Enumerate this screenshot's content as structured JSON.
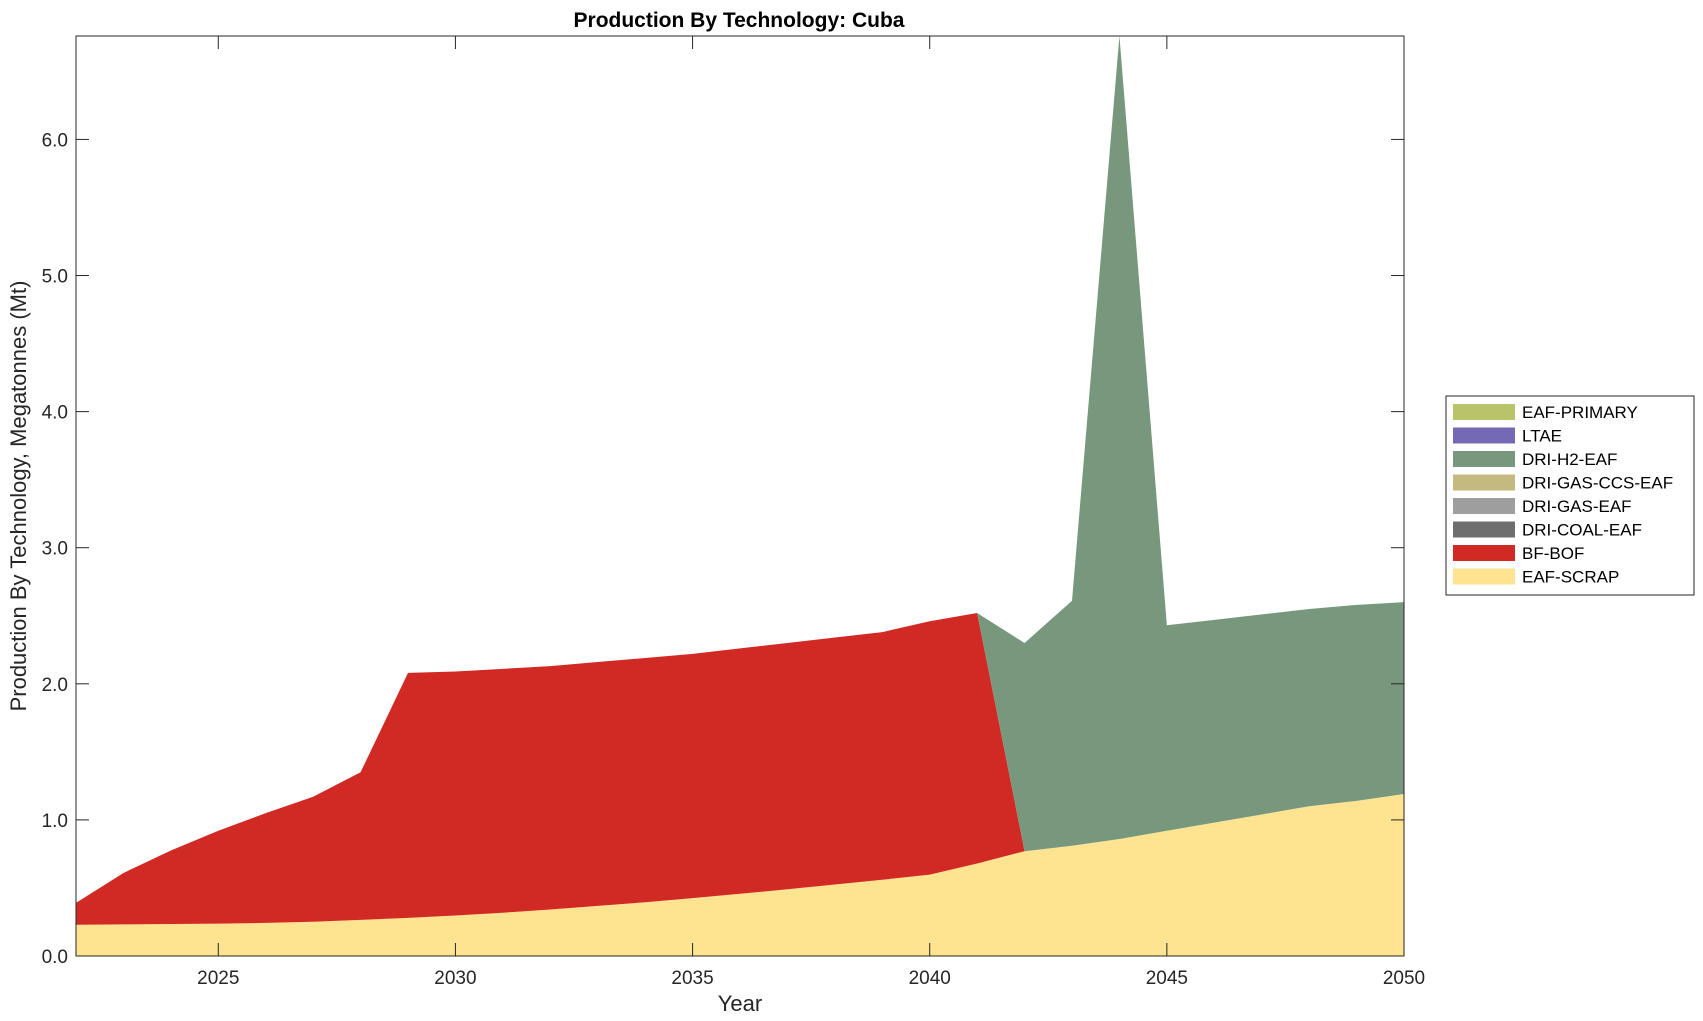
{
  "chart_data": {
    "type": "area",
    "stacked": true,
    "title": "Production By Technology: Cuba",
    "xlabel": "Year",
    "ylabel": "Production By Technology, Megatonnes (Mt)",
    "xlim": [
      2022,
      2050
    ],
    "ylim": [
      0,
      6.76
    ],
    "xticks": [
      "2025",
      "2030",
      "2035",
      "2040",
      "2045",
      "2050"
    ],
    "yticks": [
      "0.0",
      "1.0",
      "2.0",
      "3.0",
      "4.0",
      "5.0",
      "6.0"
    ],
    "grid": false,
    "legend_position": "right",
    "x": [
      2022,
      2023,
      2024,
      2025,
      2026,
      2027,
      2028,
      2029,
      2030,
      2031,
      2032,
      2033,
      2034,
      2035,
      2036,
      2037,
      2038,
      2039,
      2040,
      2041,
      2042,
      2043,
      2044,
      2045,
      2046,
      2047,
      2048,
      2049,
      2050
    ],
    "series": [
      {
        "name": "EAF-SCRAP",
        "color": "#FEE391",
        "values": [
          0.23,
          0.232,
          0.235,
          0.238,
          0.243,
          0.252,
          0.265,
          0.28,
          0.298,
          0.318,
          0.342,
          0.368,
          0.395,
          0.425,
          0.457,
          0.49,
          0.525,
          0.56,
          0.598,
          0.68,
          0.77,
          0.81,
          0.86,
          0.92,
          0.98,
          1.04,
          1.1,
          1.14,
          1.19
        ]
      },
      {
        "name": "BF-BOF",
        "color": "#D12A24",
        "values": [
          0.16,
          0.378,
          0.54,
          0.682,
          0.807,
          0.918,
          1.085,
          1.8,
          1.792,
          1.792,
          1.788,
          1.792,
          1.795,
          1.795,
          1.803,
          1.81,
          1.815,
          1.82,
          1.862,
          1.84,
          0,
          0,
          0,
          0,
          0,
          0,
          0,
          0,
          0
        ]
      },
      {
        "name": "DRI-COAL-EAF",
        "color": "#6E6E6E",
        "values": [
          0,
          0,
          0,
          0,
          0,
          0,
          0,
          0,
          0,
          0,
          0,
          0,
          0,
          0,
          0,
          0,
          0,
          0,
          0,
          0,
          0,
          0,
          0,
          0,
          0,
          0,
          0,
          0,
          0
        ]
      },
      {
        "name": "DRI-GAS-EAF",
        "color": "#9E9E9E",
        "values": [
          0,
          0,
          0,
          0,
          0,
          0,
          0,
          0,
          0,
          0,
          0,
          0,
          0,
          0,
          0,
          0,
          0,
          0,
          0,
          0,
          0,
          0,
          0,
          0,
          0,
          0,
          0,
          0,
          0
        ]
      },
      {
        "name": "DRI-GAS-CCS-EAF",
        "color": "#C4B97E",
        "values": [
          0,
          0,
          0,
          0,
          0,
          0,
          0,
          0,
          0,
          0,
          0,
          0,
          0,
          0,
          0,
          0,
          0,
          0,
          0,
          0,
          0,
          0,
          0,
          0,
          0,
          0,
          0,
          0,
          0
        ]
      },
      {
        "name": "DRI-H2-EAF",
        "color": "#77987C",
        "values": [
          0,
          0,
          0,
          0,
          0,
          0,
          0,
          0,
          0,
          0,
          0,
          0,
          0,
          0,
          0,
          0,
          0,
          0,
          0,
          0,
          1.53,
          1.8,
          5.9,
          1.51,
          1.49,
          1.47,
          1.45,
          1.44,
          1.41
        ]
      },
      {
        "name": "LTAE",
        "color": "#7469B5",
        "values": [
          0,
          0,
          0,
          0,
          0,
          0,
          0,
          0,
          0,
          0,
          0,
          0,
          0,
          0,
          0,
          0,
          0,
          0,
          0,
          0,
          0,
          0,
          0,
          0,
          0,
          0,
          0,
          0,
          0
        ]
      },
      {
        "name": "EAF-PRIMARY",
        "color": "#B9C36A",
        "values": [
          0,
          0,
          0,
          0,
          0,
          0,
          0,
          0,
          0,
          0,
          0,
          0,
          0,
          0,
          0,
          0,
          0,
          0,
          0,
          0,
          0,
          0,
          0,
          0,
          0,
          0,
          0,
          0,
          0
        ]
      }
    ]
  }
}
